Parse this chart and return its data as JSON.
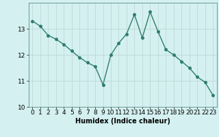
{
  "x": [
    0,
    1,
    2,
    3,
    4,
    5,
    6,
    7,
    8,
    9,
    10,
    11,
    12,
    13,
    14,
    15,
    16,
    17,
    18,
    19,
    20,
    21,
    22,
    23
  ],
  "y": [
    13.3,
    13.1,
    12.75,
    12.6,
    12.4,
    12.15,
    11.9,
    11.7,
    11.55,
    10.85,
    12.0,
    12.45,
    12.8,
    13.55,
    12.65,
    13.65,
    12.9,
    12.2,
    12.0,
    11.75,
    11.5,
    11.15,
    10.95,
    10.45
  ],
  "line_color": "#2e7d6e",
  "marker_color": "#2e7d6e",
  "bg_color": "#d4f0f0",
  "grid_color": "#c0d8d8",
  "xlabel": "Humidex (Indice chaleur)",
  "ylim": [
    10.0,
    14.0
  ],
  "xlim": [
    -0.5,
    23.5
  ],
  "yticks": [
    10,
    11,
    12,
    13
  ],
  "xticks": [
    0,
    1,
    2,
    3,
    4,
    5,
    6,
    7,
    8,
    9,
    10,
    11,
    12,
    13,
    14,
    15,
    16,
    17,
    18,
    19,
    20,
    21,
    22,
    23
  ],
  "label_fontsize": 7,
  "tick_fontsize": 6.5,
  "line_width": 1.0,
  "marker_size": 2.5
}
